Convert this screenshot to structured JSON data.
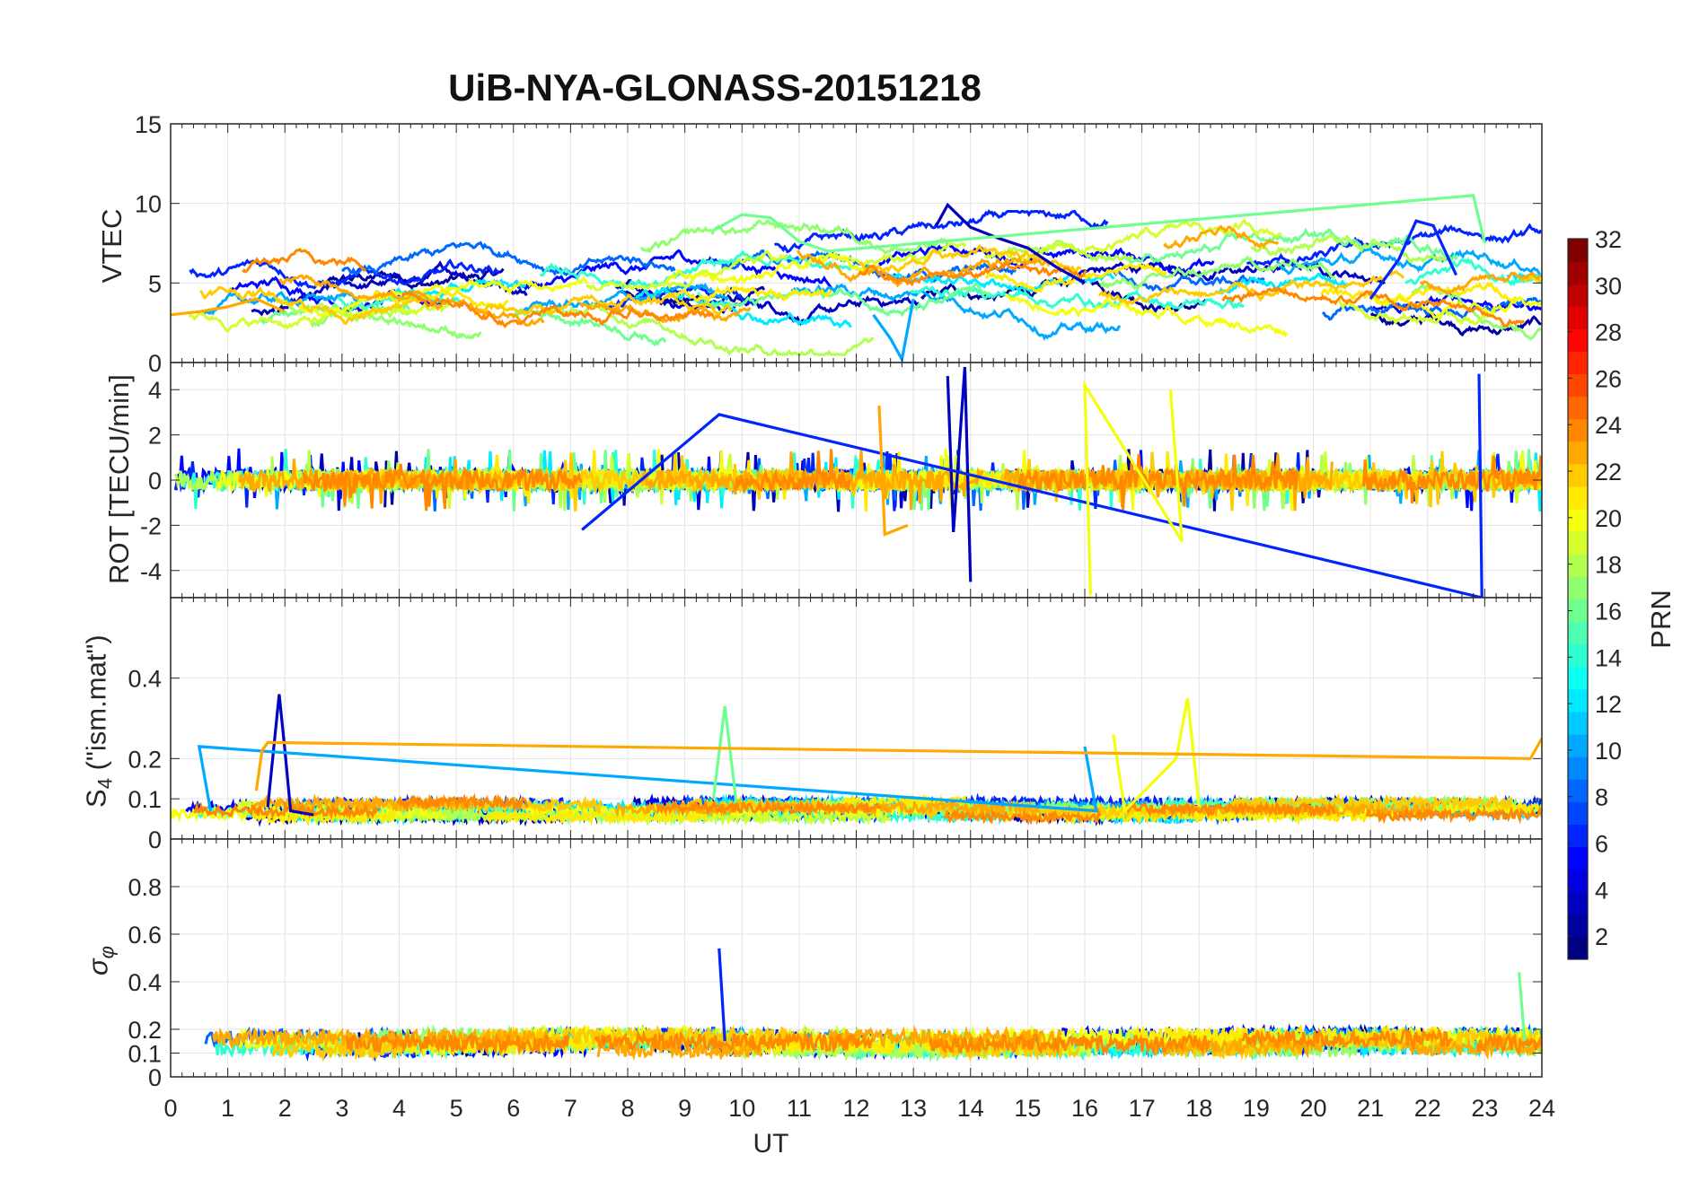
{
  "title": "UiB-NYA-GLONASS-20151218",
  "xlabel": "UT",
  "colorbar": {
    "label": "PRN",
    "range": [
      1,
      32
    ],
    "ticks": [
      "2",
      "4",
      "6",
      "8",
      "10",
      "12",
      "14",
      "16",
      "18",
      "20",
      "22",
      "24",
      "26",
      "28",
      "30",
      "32"
    ],
    "colormap": "jet"
  },
  "panels": [
    {
      "key": "vtec",
      "ylabel": "VTEC",
      "ylim": [
        0,
        15
      ],
      "yticks": [
        "0",
        "5",
        "10",
        "15"
      ]
    },
    {
      "key": "rot",
      "ylabel": "ROT [TECU/min]",
      "ylim": [
        -5.2,
        5.2
      ],
      "yticks": [
        "-4",
        "-2",
        "0",
        "2",
        "4"
      ]
    },
    {
      "key": "s4",
      "ylabel_main": "S",
      "ylabel_sub": "4",
      "ylabel_rest": " (\"ism.mat\")",
      "ylim": [
        0,
        0.6
      ],
      "yticks": [
        "0",
        "0.1",
        "0.2",
        "0.4"
      ]
    },
    {
      "key": "sigma",
      "ylabel_main": "σ",
      "ylabel_sub": "φ",
      "ylim": [
        0,
        1
      ],
      "yticks": [
        "0",
        "0.1",
        "0.2",
        "0.4",
        "0.6",
        "0.8"
      ]
    }
  ],
  "x_ticks": [
    "0",
    "1",
    "2",
    "3",
    "4",
    "5",
    "6",
    "7",
    "8",
    "9",
    "10",
    "11",
    "12",
    "13",
    "14",
    "15",
    "16",
    "17",
    "18",
    "19",
    "20",
    "21",
    "22",
    "23",
    "24"
  ],
  "chart_data": {
    "type": "line",
    "title": "UiB-NYA-GLONASS-20151218",
    "xlabel": "UT",
    "xlim": [
      0,
      24
    ],
    "series_color_by": "PRN",
    "series": [
      {
        "prn": 3,
        "vtec": [
          [
            13.4,
            8.6
          ],
          [
            13.6,
            9.9
          ],
          [
            14.0,
            8.5
          ],
          [
            14.5,
            7.8
          ],
          [
            15.0,
            7.2
          ],
          [
            15.5,
            6.0
          ],
          [
            16.0,
            5.0
          ]
        ],
        "s4": [
          [
            1.7,
            0.08
          ],
          [
            1.9,
            0.36
          ],
          [
            2.0,
            0.22
          ],
          [
            2.1,
            0.07
          ],
          [
            2.5,
            0.06
          ]
        ],
        "rot": [
          [
            13.6,
            4.6
          ],
          [
            13.7,
            -2.3
          ],
          [
            13.9,
            5.0
          ],
          [
            14.0,
            -4.5
          ]
        ]
      },
      {
        "prn": 6,
        "vtec": [
          [
            21.0,
            4.0
          ],
          [
            21.5,
            6.5
          ],
          [
            21.8,
            8.9
          ],
          [
            22.1,
            8.6
          ],
          [
            22.5,
            5.5
          ]
        ],
        "rot": [
          [
            22.9,
            4.7
          ],
          [
            22.95,
            -5.2
          ],
          [
            9.6,
            2.9
          ],
          [
            7.2,
            -2.2
          ]
        ],
        "sigma": [
          [
            9.6,
            0.54
          ],
          [
            9.7,
            0.15
          ]
        ]
      },
      {
        "prn": 10,
        "vtec": [
          [
            12.3,
            3.0
          ],
          [
            12.6,
            1.5
          ],
          [
            12.8,
            0.2
          ],
          [
            13.0,
            4.0
          ]
        ],
        "s4": [
          [
            16.0,
            0.23
          ],
          [
            16.2,
            0.07
          ],
          [
            0.5,
            0.23
          ],
          [
            0.7,
            0.07
          ]
        ]
      },
      {
        "prn": 16,
        "vtec": [
          [
            9.5,
            8.3
          ],
          [
            10.0,
            9.3
          ],
          [
            10.5,
            9.1
          ],
          [
            11.0,
            7.6
          ],
          [
            11.5,
            7.0
          ],
          [
            22.8,
            10.5
          ],
          [
            23.0,
            7.5
          ]
        ],
        "s4": [
          [
            9.5,
            0.1
          ],
          [
            9.7,
            0.33
          ],
          [
            9.9,
            0.09
          ]
        ],
        "sigma": [
          [
            23.6,
            0.44
          ],
          [
            23.7,
            0.15
          ]
        ]
      },
      {
        "prn": 20,
        "s4": [
          [
            16.5,
            0.26
          ],
          [
            16.7,
            0.07
          ],
          [
            17.6,
            0.2
          ],
          [
            17.8,
            0.35
          ],
          [
            18.0,
            0.08
          ]
        ],
        "rot": [
          [
            17.5,
            4.0
          ],
          [
            17.7,
            -2.7
          ],
          [
            16.0,
            4.2
          ],
          [
            16.1,
            -5.1
          ]
        ]
      },
      {
        "prn": 23,
        "vtec": [
          [
            0.0,
            3.0
          ],
          [
            0.5,
            3.2
          ],
          [
            1.0,
            3.5
          ],
          [
            1.5,
            4.0
          ],
          [
            2.0,
            3.2
          ]
        ],
        "s4": [
          [
            1.5,
            0.12
          ],
          [
            1.6,
            0.22
          ],
          [
            1.7,
            0.24
          ],
          [
            23.8,
            0.2
          ],
          [
            24.0,
            0.25
          ]
        ],
        "rot": [
          [
            12.4,
            3.3
          ],
          [
            12.5,
            -2.4
          ],
          [
            12.9,
            -2.0
          ]
        ]
      }
    ]
  }
}
